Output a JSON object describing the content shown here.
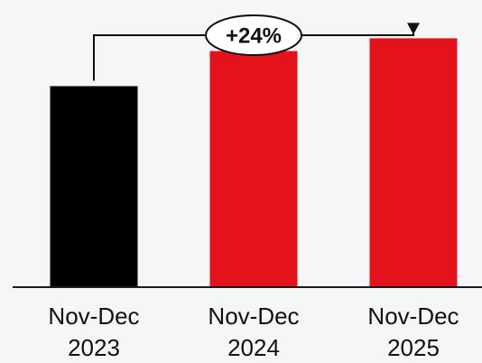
{
  "chart_data": {
    "type": "bar",
    "categories": [
      [
        "Nov-Dec",
        "2023"
      ],
      [
        "Nov-Dec",
        "2024"
      ],
      [
        "Nov-Dec",
        "2025"
      ]
    ],
    "values": [
      63,
      74,
      78
    ],
    "bar_colors": [
      "#000000",
      "#e3121b",
      "#e3121b"
    ],
    "ylim": [
      0,
      90
    ],
    "grid": false,
    "axis_color": "#1a1a1a",
    "annotation": {
      "text": "+24%",
      "from_index": 0,
      "to_index": 2
    }
  }
}
